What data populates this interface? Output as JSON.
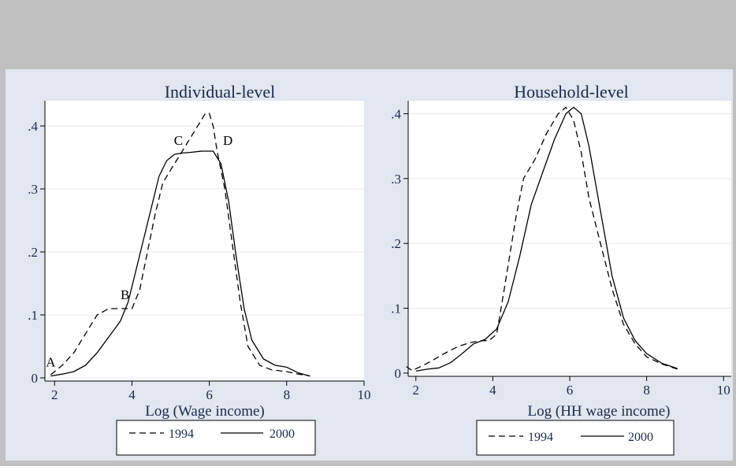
{
  "colors": {
    "outer_bg": "#c0c0c0",
    "graph_bg": "#e1e6ef",
    "plot_bg": "#ffffff",
    "grid": "#e6e9ef",
    "line": "#000000",
    "title": "#1a2b4c"
  },
  "chart_data": [
    {
      "type": "line",
      "title": "Individual-level",
      "xlabel": "Log (Wage income)",
      "ylabel": "",
      "xlim": [
        1.75,
        10
      ],
      "ylim": [
        -0.005,
        0.44
      ],
      "x_ticks": [
        2,
        4,
        6,
        8,
        10
      ],
      "x_tick_labels": [
        "2",
        "4",
        "6",
        "8",
        "10"
      ],
      "y_ticks": [
        0,
        0.1,
        0.2,
        0.3,
        0.4
      ],
      "y_tick_labels": [
        "0",
        ".1",
        ".2",
        ".3",
        ".4"
      ],
      "grid": "horizontal",
      "legend": {
        "placement": "bottom",
        "entries": [
          "1994",
          "2000"
        ]
      },
      "series": [
        {
          "name": "1994",
          "style": "dashed",
          "x": [
            1.9,
            2.2,
            2.5,
            2.8,
            3.1,
            3.4,
            3.7,
            4.0,
            4.2,
            4.4,
            4.6,
            4.8,
            5.0,
            5.2,
            5.4,
            5.6,
            5.8,
            5.9,
            6.0,
            6.1,
            6.2,
            6.4,
            6.6,
            6.8,
            7.0,
            7.3,
            7.6,
            8.0,
            8.3,
            8.6
          ],
          "values": [
            0.005,
            0.02,
            0.04,
            0.07,
            0.1,
            0.11,
            0.11,
            0.11,
            0.14,
            0.2,
            0.26,
            0.31,
            0.33,
            0.35,
            0.37,
            0.39,
            0.41,
            0.42,
            0.42,
            0.4,
            0.36,
            0.3,
            0.21,
            0.12,
            0.05,
            0.02,
            0.013,
            0.01,
            0.006,
            0.003
          ]
        },
        {
          "name": "2000",
          "style": "solid",
          "x": [
            1.9,
            2.2,
            2.5,
            2.8,
            3.1,
            3.4,
            3.7,
            3.9,
            4.1,
            4.3,
            4.5,
            4.7,
            4.9,
            5.1,
            5.3,
            5.5,
            5.8,
            6.1,
            6.3,
            6.5,
            6.7,
            6.9,
            7.1,
            7.4,
            7.7,
            8.0,
            8.3,
            8.6
          ],
          "values": [
            0.003,
            0.006,
            0.01,
            0.02,
            0.04,
            0.065,
            0.09,
            0.12,
            0.17,
            0.22,
            0.27,
            0.32,
            0.345,
            0.355,
            0.357,
            0.358,
            0.36,
            0.36,
            0.34,
            0.28,
            0.19,
            0.11,
            0.06,
            0.03,
            0.02,
            0.017,
            0.008,
            0.003
          ]
        }
      ],
      "annotations": [
        {
          "text": "A",
          "x": 1.9,
          "y": 0.018
        },
        {
          "text": "B",
          "x": 3.82,
          "y": 0.125
        },
        {
          "text": "C",
          "x": 5.2,
          "y": 0.37
        },
        {
          "text": "D",
          "x": 6.48,
          "y": 0.37
        }
      ]
    },
    {
      "type": "line",
      "title": "Household-level",
      "xlabel": "Log (HH wage income)",
      "ylabel": "",
      "xlim": [
        1.8,
        10.2
      ],
      "ylim": [
        -0.005,
        0.42
      ],
      "x_ticks": [
        2,
        4,
        6,
        8,
        10
      ],
      "x_tick_labels": [
        "2",
        "4",
        "6",
        "8",
        "10"
      ],
      "y_ticks": [
        0,
        0.1,
        0.2,
        0.3,
        0.4
      ],
      "y_tick_labels": [
        "0",
        ".1",
        ".2",
        ".3",
        ".4"
      ],
      "grid": "horizontal",
      "legend": {
        "placement": "bottom",
        "entries": [
          "1994",
          "2000"
        ]
      },
      "series": [
        {
          "name": "1994",
          "style": "dashed",
          "x": [
            1.75,
            1.9,
            2.2,
            2.5,
            2.8,
            3.1,
            3.4,
            3.7,
            3.9,
            4.1,
            4.3,
            4.6,
            4.8,
            5.1,
            5.4,
            5.7,
            5.9,
            6.1,
            6.3,
            6.5,
            6.8,
            7.1,
            7.4,
            7.7,
            8.0,
            8.4,
            8.8
          ],
          "values": [
            0.01,
            0.004,
            0.012,
            0.022,
            0.032,
            0.041,
            0.047,
            0.05,
            0.05,
            0.06,
            0.13,
            0.24,
            0.3,
            0.33,
            0.37,
            0.4,
            0.41,
            0.39,
            0.34,
            0.27,
            0.2,
            0.13,
            0.075,
            0.045,
            0.025,
            0.014,
            0.006
          ]
        },
        {
          "name": "2000",
          "style": "solid",
          "x": [
            2.0,
            2.3,
            2.6,
            2.9,
            3.2,
            3.5,
            3.8,
            4.1,
            4.4,
            4.7,
            5.0,
            5.3,
            5.6,
            5.9,
            6.1,
            6.3,
            6.5,
            6.8,
            7.1,
            7.4,
            7.7,
            8.0,
            8.4,
            8.8
          ],
          "values": [
            0.003,
            0.006,
            0.008,
            0.016,
            0.03,
            0.045,
            0.052,
            0.068,
            0.11,
            0.18,
            0.26,
            0.31,
            0.36,
            0.4,
            0.41,
            0.4,
            0.35,
            0.25,
            0.15,
            0.085,
            0.05,
            0.03,
            0.015,
            0.007
          ]
        }
      ],
      "annotations": []
    }
  ]
}
